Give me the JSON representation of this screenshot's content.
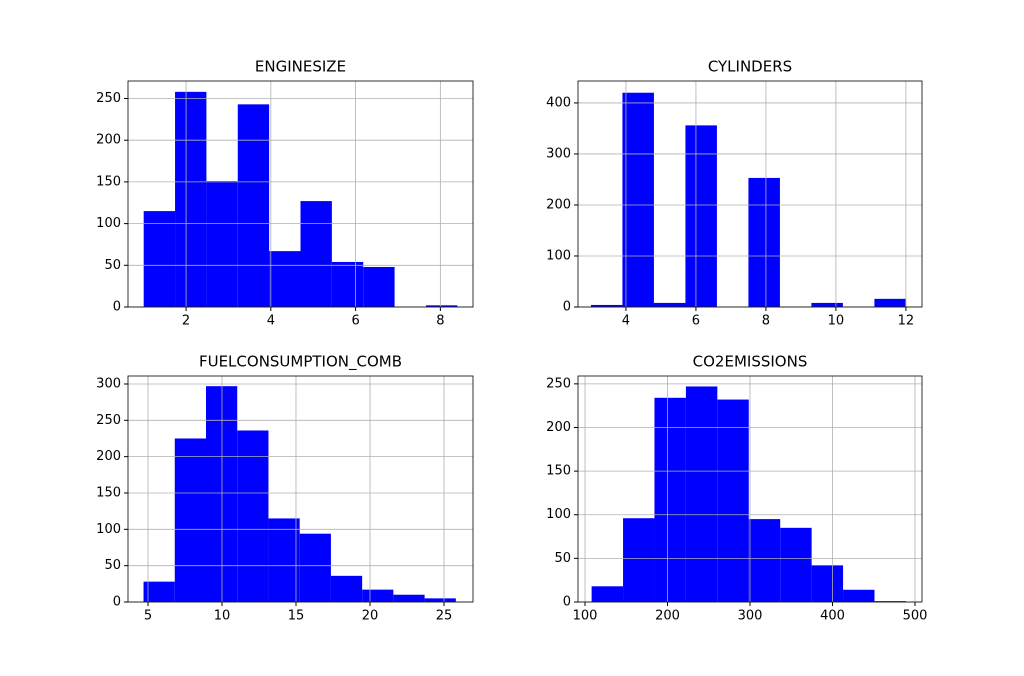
{
  "chart_data": [
    {
      "type": "histogram",
      "title": "ENGINESIZE",
      "color": "#0000ff",
      "grid": true,
      "bins": [
        1.0,
        1.74,
        2.48,
        3.22,
        3.96,
        4.7,
        5.44,
        6.18,
        6.92,
        7.66,
        8.4
      ],
      "values": [
        115,
        258,
        151,
        243,
        67,
        127,
        54,
        48,
        0,
        2
      ],
      "xlim": [
        0.63,
        8.77
      ],
      "xticks": [
        2,
        4,
        6,
        8
      ],
      "ylim": [
        0,
        271
      ],
      "yticks": [
        0,
        50,
        100,
        150,
        200,
        250
      ]
    },
    {
      "type": "histogram",
      "title": "CYLINDERS",
      "color": "#0000ff",
      "grid": true,
      "bins": [
        3.0,
        3.9,
        4.8,
        5.7,
        6.6,
        7.5,
        8.4,
        9.3,
        10.2,
        11.1,
        12.0
      ],
      "values": [
        4,
        420,
        8,
        356,
        0,
        253,
        0,
        8,
        0,
        16
      ],
      "xlim": [
        2.63,
        12.46
      ],
      "xticks": [
        4,
        6,
        8,
        10,
        12
      ],
      "ylim": [
        0,
        443
      ],
      "yticks": [
        0,
        100,
        200,
        300,
        400
      ]
    },
    {
      "type": "histogram",
      "title": "FUELCONSUMPTION_COMB",
      "color": "#0000ff",
      "grid": true,
      "bins": [
        4.7,
        6.81,
        8.92,
        11.03,
        13.14,
        15.25,
        17.36,
        19.47,
        21.58,
        23.69,
        25.8
      ],
      "values": [
        28,
        225,
        297,
        236,
        115,
        94,
        36,
        17,
        10,
        5
      ],
      "xlim": [
        3.65,
        26.96
      ],
      "xticks": [
        5,
        10,
        15,
        20,
        25
      ],
      "ylim": [
        0,
        311
      ],
      "yticks": [
        0,
        50,
        100,
        150,
        200,
        250,
        300
      ]
    },
    {
      "type": "histogram",
      "title": "CO2EMISSIONS",
      "color": "#0000ff",
      "grid": true,
      "bins": [
        108,
        146.1,
        184.2,
        222.3,
        260.4,
        298.5,
        336.6,
        374.7,
        412.8,
        450.9,
        489
      ],
      "values": [
        18,
        96,
        234,
        247,
        232,
        95,
        85,
        42,
        14,
        1
      ],
      "xlim": [
        91.5,
        508.5
      ],
      "xticks": [
        100,
        200,
        300,
        400,
        500
      ],
      "ylim": [
        0,
        259
      ],
      "yticks": [
        0,
        50,
        100,
        150,
        200,
        250
      ]
    }
  ]
}
